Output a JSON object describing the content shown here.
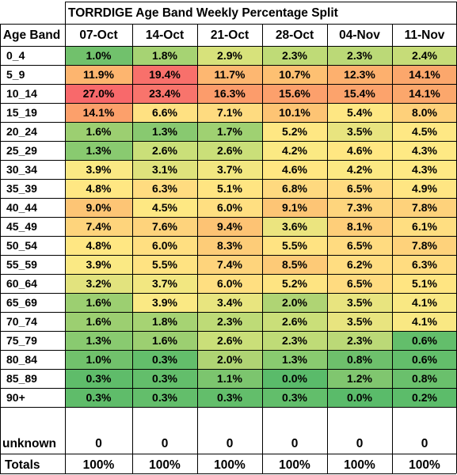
{
  "chart_data": {
    "type": "heatmap",
    "title": "TORRDIGE Age Band Weekly Percentage Split",
    "row_header": "Age Band",
    "columns": [
      "07-Oct",
      "14-Oct",
      "21-Oct",
      "28-Oct",
      "04-Nov",
      "11-Nov"
    ],
    "rows": [
      {
        "label": "0_4",
        "values": [
          "1.0%",
          "1.8%",
          "2.9%",
          "2.3%",
          "2.3%",
          "2.4%"
        ],
        "colors": [
          "#71c16c",
          "#a6d373",
          "#d7e27b",
          "#bfdb77",
          "#bbd977",
          "#c6dc78"
        ]
      },
      {
        "label": "5_9",
        "values": [
          "11.9%",
          "19.4%",
          "11.7%",
          "10.7%",
          "12.3%",
          "14.1%"
        ],
        "colors": [
          "#fdb56f",
          "#f8706b",
          "#fdb771",
          "#fdc072",
          "#fdb06e",
          "#fba76c"
        ]
      },
      {
        "label": "10_14",
        "values": [
          "27.0%",
          "23.4%",
          "16.3%",
          "15.6%",
          "15.4%",
          "14.1%"
        ],
        "colors": [
          "#f8696b",
          "#f8746c",
          "#fc9c6b",
          "#fca06c",
          "#fca36c",
          "#fba76c"
        ]
      },
      {
        "label": "15_19",
        "values": [
          "14.1%",
          "6.6%",
          "7.1%",
          "10.1%",
          "5.4%",
          "8.0%"
        ],
        "colors": [
          "#fca06b",
          "#ffe182",
          "#fedb80",
          "#fdc474",
          "#fee783",
          "#fed07a"
        ]
      },
      {
        "label": "20_24",
        "values": [
          "1.6%",
          "1.3%",
          "1.7%",
          "5.2%",
          "3.5%",
          "4.5%"
        ],
        "colors": [
          "#9ccf71",
          "#88c970",
          "#9fd172",
          "#fee783",
          "#e8e47f",
          "#fee884"
        ]
      },
      {
        "label": "25_29",
        "values": [
          "1.3%",
          "2.6%",
          "2.6%",
          "4.2%",
          "4.6%",
          "4.3%"
        ],
        "colors": [
          "#89ca70",
          "#cadf79",
          "#cadf79",
          "#fbe983",
          "#ffe782",
          "#fee984"
        ]
      },
      {
        "label": "30_34",
        "values": [
          "3.9%",
          "3.1%",
          "3.7%",
          "4.6%",
          "4.2%",
          "4.3%"
        ],
        "colors": [
          "#fae984",
          "#dfe27c",
          "#f2e781",
          "#ffe782",
          "#fce983",
          "#fee984"
        ]
      },
      {
        "label": "35_39",
        "values": [
          "4.8%",
          "6.3%",
          "5.1%",
          "6.8%",
          "6.5%",
          "4.9%"
        ],
        "colors": [
          "#ffe783",
          "#ffdc80",
          "#ffe582",
          "#fed97f",
          "#ffdb80",
          "#ffe683"
        ]
      },
      {
        "label": "40_44",
        "values": [
          "9.0%",
          "4.5%",
          "6.0%",
          "9.1%",
          "7.3%",
          "7.8%"
        ],
        "colors": [
          "#fdc575",
          "#fee883",
          "#ffdf81",
          "#fdc575",
          "#fed57d",
          "#fed27b"
        ]
      },
      {
        "label": "45_49",
        "values": [
          "7.4%",
          "7.6%",
          "9.4%",
          "3.6%",
          "8.1%",
          "6.1%"
        ],
        "colors": [
          "#fed47c",
          "#fed37c",
          "#fdc374",
          "#ebe47f",
          "#fece79",
          "#ffde81"
        ]
      },
      {
        "label": "50_54",
        "values": [
          "4.8%",
          "6.0%",
          "8.3%",
          "5.5%",
          "6.5%",
          "7.8%"
        ],
        "colors": [
          "#ffe783",
          "#ffdf81",
          "#fdcc78",
          "#ffe382",
          "#ffdb80",
          "#fed27b"
        ]
      },
      {
        "label": "55_59",
        "values": [
          "3.9%",
          "5.5%",
          "7.4%",
          "8.5%",
          "6.2%",
          "6.3%"
        ],
        "colors": [
          "#fae984",
          "#ffe382",
          "#fed47c",
          "#fdca77",
          "#ffdd81",
          "#ffdc80"
        ]
      },
      {
        "label": "60_64",
        "values": [
          "3.2%",
          "3.7%",
          "6.0%",
          "5.2%",
          "6.5%",
          "5.1%"
        ],
        "colors": [
          "#e2e37e",
          "#f2e781",
          "#ffdf81",
          "#fee482",
          "#ffdb80",
          "#ffe582"
        ]
      },
      {
        "label": "65_69",
        "values": [
          "1.6%",
          "3.9%",
          "3.4%",
          "2.0%",
          "3.5%",
          "4.1%"
        ],
        "colors": [
          "#9ccf71",
          "#fae984",
          "#e8e57f",
          "#afd474",
          "#e8e47f",
          "#f9e883"
        ]
      },
      {
        "label": "70_74",
        "values": [
          "1.6%",
          "1.8%",
          "2.3%",
          "2.6%",
          "3.5%",
          "4.1%"
        ],
        "colors": [
          "#9ccf71",
          "#a6d373",
          "#bedb77",
          "#cadf79",
          "#e8e47f",
          "#f9e883"
        ]
      },
      {
        "label": "75_79",
        "values": [
          "1.3%",
          "1.6%",
          "2.6%",
          "2.3%",
          "2.3%",
          "0.6%"
        ],
        "colors": [
          "#89ca70",
          "#9ccf71",
          "#cadf79",
          "#bfdb77",
          "#bbd977",
          "#63be6b"
        ]
      },
      {
        "label": "80_84",
        "values": [
          "1.0%",
          "0.3%",
          "2.0%",
          "1.3%",
          "0.8%",
          "0.6%"
        ],
        "colors": [
          "#71c16c",
          "#63be6b",
          "#afd474",
          "#89ca70",
          "#6ec06c",
          "#63be6b"
        ]
      },
      {
        "label": "85_89",
        "values": [
          "0.3%",
          "0.3%",
          "1.1%",
          "0.0%",
          "1.2%",
          "0.8%"
        ],
        "colors": [
          "#5fbc6a",
          "#63be6b",
          "#7cc56e",
          "#5abb6a",
          "#80c66f",
          "#6ac06c"
        ]
      },
      {
        "label": "90+",
        "values": [
          "0.3%",
          "0.3%",
          "0.3%",
          "0.3%",
          "0.0%",
          "0.2%"
        ],
        "colors": [
          "#5fbc6a",
          "#63be6b",
          "#63be6b",
          "#62be6b",
          "#5abb6a",
          "#5cbc6a"
        ]
      }
    ],
    "unknown": {
      "label": "unknown",
      "values": [
        "0",
        "0",
        "0",
        "0",
        "0",
        "0"
      ]
    },
    "totals": {
      "label": "Totals",
      "values": [
        "100%",
        "100%",
        "100%",
        "100%",
        "100%",
        "100%"
      ]
    },
    "color_scale": {
      "low": "#63be6b",
      "mid": "#ffeb84",
      "high": "#f8696b"
    },
    "grid": true
  }
}
